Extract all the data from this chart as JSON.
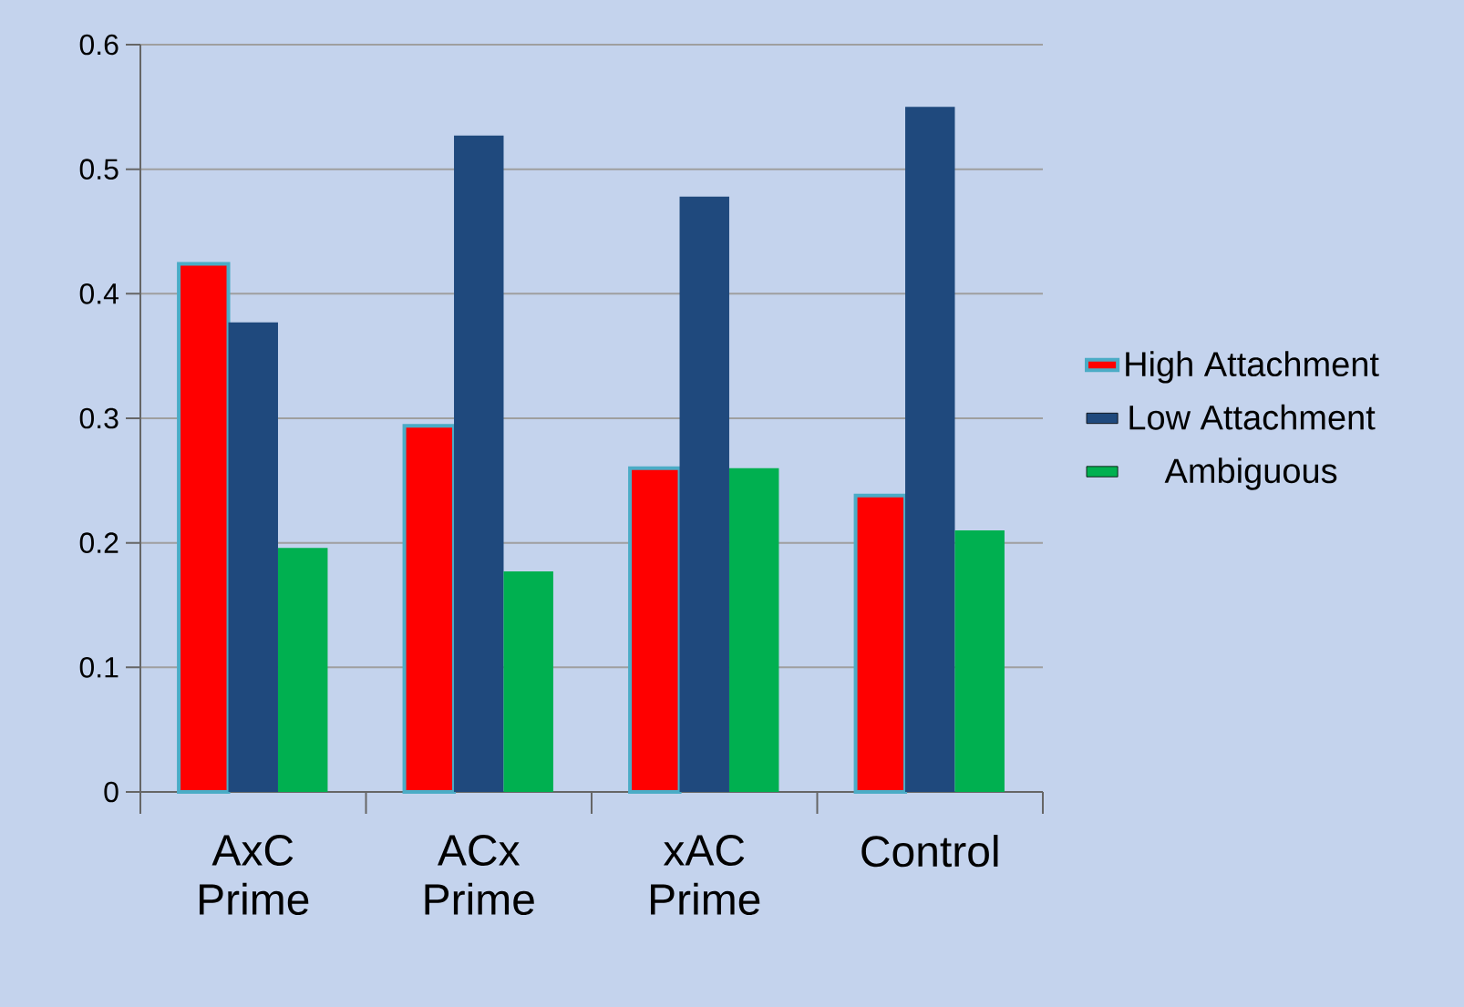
{
  "chart_data": {
    "type": "bar",
    "categories": [
      "AxC Prime",
      "ACx Prime",
      "xAC Prime",
      "Control"
    ],
    "series": [
      {
        "name": "High Attachment",
        "color": "#ff0000",
        "values": [
          0.424,
          0.294,
          0.26,
          0.238
        ]
      },
      {
        "name": "Low Attachment",
        "color": "#1f497d",
        "values": [
          0.377,
          0.527,
          0.478,
          0.55
        ]
      },
      {
        "name": "Ambiguous",
        "color": "#00b050",
        "values": [
          0.196,
          0.177,
          0.26,
          0.21
        ]
      }
    ],
    "ylim": [
      0,
      0.6
    ],
    "yticks": [
      0,
      0.1,
      0.2,
      0.3,
      0.4,
      0.5,
      0.6
    ],
    "grid": "y",
    "legend": "right"
  }
}
